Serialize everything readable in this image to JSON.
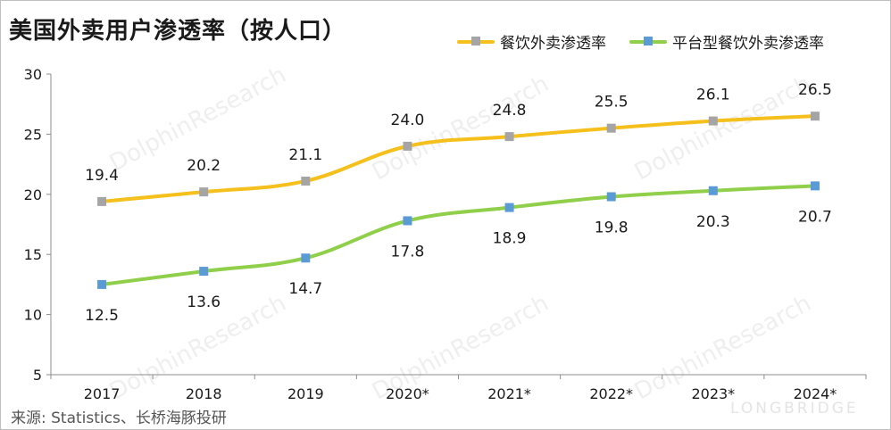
{
  "title": "美国外卖用户渗透率（按人口）",
  "source": "来源: Statistics、长桥海豚投研",
  "watermark": {
    "brand": "LONGBRIDGE",
    "text": "DolphinResearch",
    "small": "LONGBRIDGE"
  },
  "colors": {
    "series1_line": "#f5bf1c",
    "series1_marker": "#a5a5a5",
    "series2_line": "#8fcf4a",
    "series2_marker": "#5b9bd5",
    "axis": "#8c8c8c",
    "text": "#1a1a1a"
  },
  "chart_data": {
    "type": "line",
    "title": "美国外卖用户渗透率（按人口）",
    "categories": [
      "2017",
      "2018",
      "2019",
      "2020*",
      "2021*",
      "2022*",
      "2023*",
      "2024*"
    ],
    "ylim": [
      5,
      30
    ],
    "yticks": [
      "5",
      "10",
      "15",
      "20",
      "25",
      "30"
    ],
    "grid": false,
    "legend_position": "top-right",
    "series": [
      {
        "name": "餐饮外卖渗透率",
        "values": [
          19.4,
          20.2,
          21.1,
          24.0,
          24.8,
          25.5,
          26.1,
          26.5
        ],
        "labels": [
          "19.4",
          "20.2",
          "21.1",
          "24.0",
          "24.8",
          "25.5",
          "26.1",
          "26.5"
        ],
        "label_position": "above"
      },
      {
        "name": "平台型餐饮外卖渗透率",
        "values": [
          12.5,
          13.6,
          14.7,
          17.8,
          18.9,
          19.8,
          20.3,
          20.7
        ],
        "labels": [
          "12.5",
          "13.6",
          "14.7",
          "17.8",
          "18.9",
          "19.8",
          "20.3",
          "20.7"
        ],
        "label_position": "below"
      }
    ]
  }
}
